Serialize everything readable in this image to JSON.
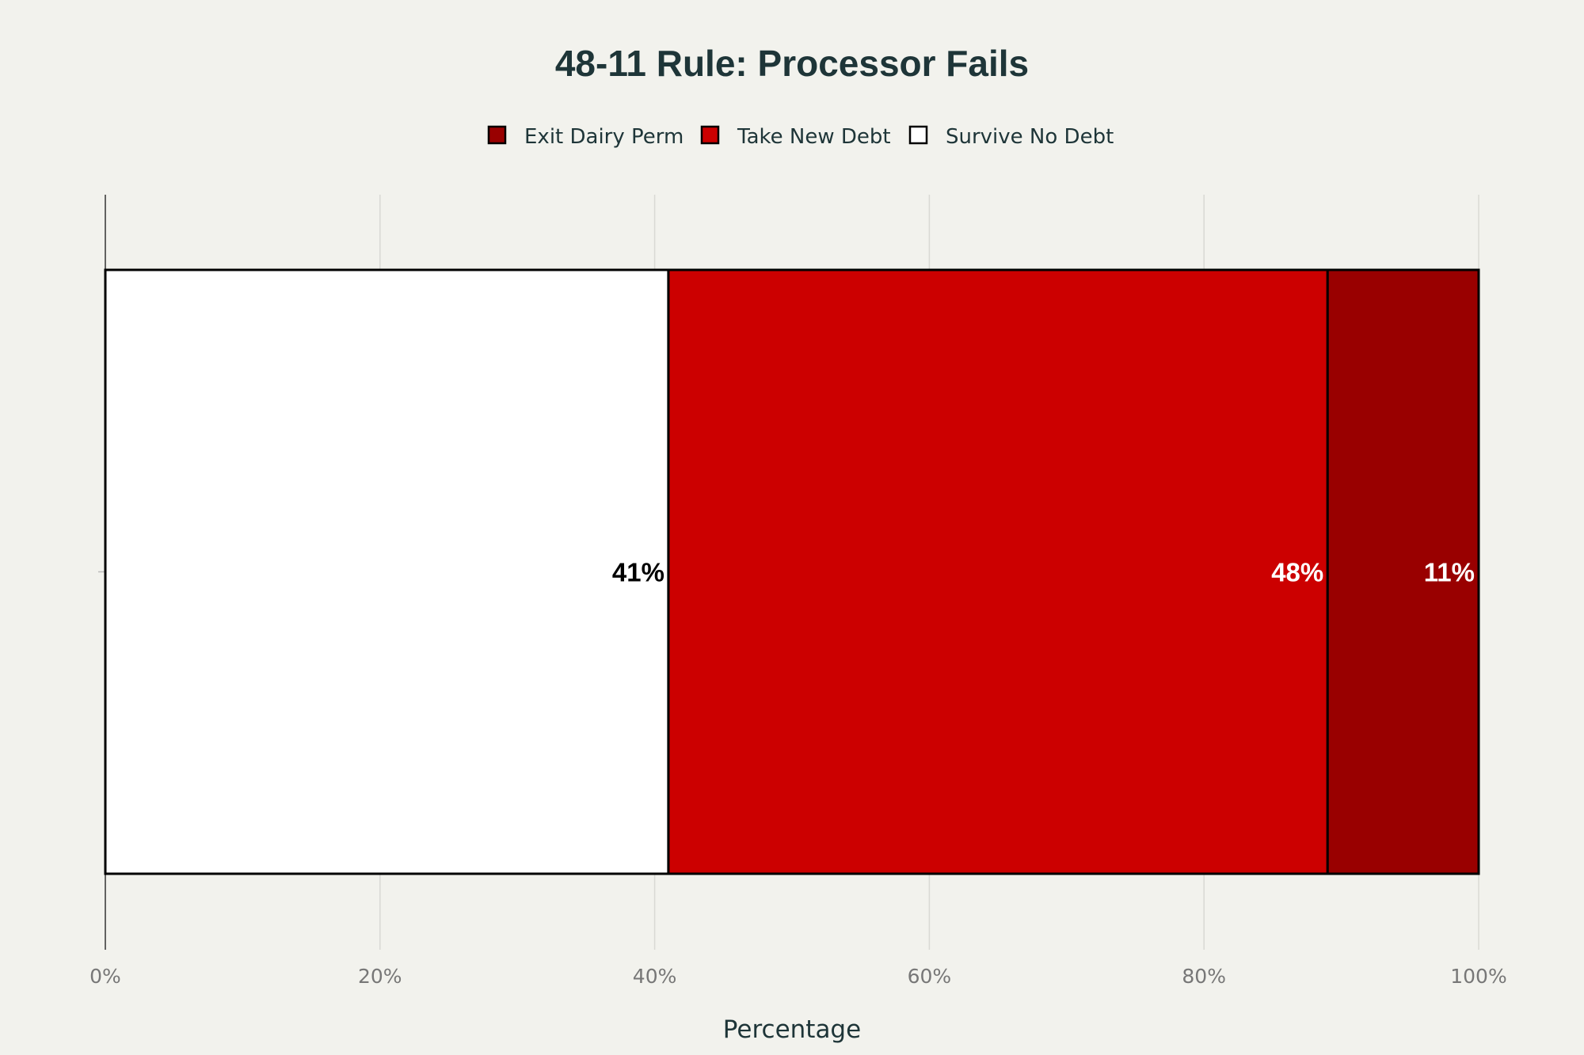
{
  "chart_data": {
    "type": "bar",
    "orientation": "horizontal",
    "stacked": true,
    "title": "48-11 Rule: Processor Fails",
    "xlabel": "Percentage",
    "ylabel": "",
    "xlim": [
      0,
      100
    ],
    "x_ticks": [
      0,
      20,
      40,
      60,
      80,
      100
    ],
    "x_tick_labels": [
      "0%",
      "20%",
      "40%",
      "60%",
      "80%",
      "100%"
    ],
    "grid": true,
    "legend_position": "top-center",
    "legend": [
      "Exit Dairy Perm",
      "Take New Debt",
      "Survive No Debt"
    ],
    "categories": [
      ""
    ],
    "series": [
      {
        "name": "Survive No Debt",
        "values": [
          41
        ],
        "label": "41%",
        "color": "#ffffff",
        "label_color": "#000000"
      },
      {
        "name": "Take New Debt",
        "values": [
          48
        ],
        "label": "48%",
        "color": "#cc0000",
        "label_color": "#ffffff"
      },
      {
        "name": "Exit Dairy Perm",
        "values": [
          11
        ],
        "label": "11%",
        "color": "#990000",
        "label_color": "#ffffff"
      }
    ],
    "colors": {
      "background": "#f2f2ed",
      "text": "#1e3538",
      "grid": "#d9d9d4",
      "bar_outline": "#000000"
    }
  }
}
